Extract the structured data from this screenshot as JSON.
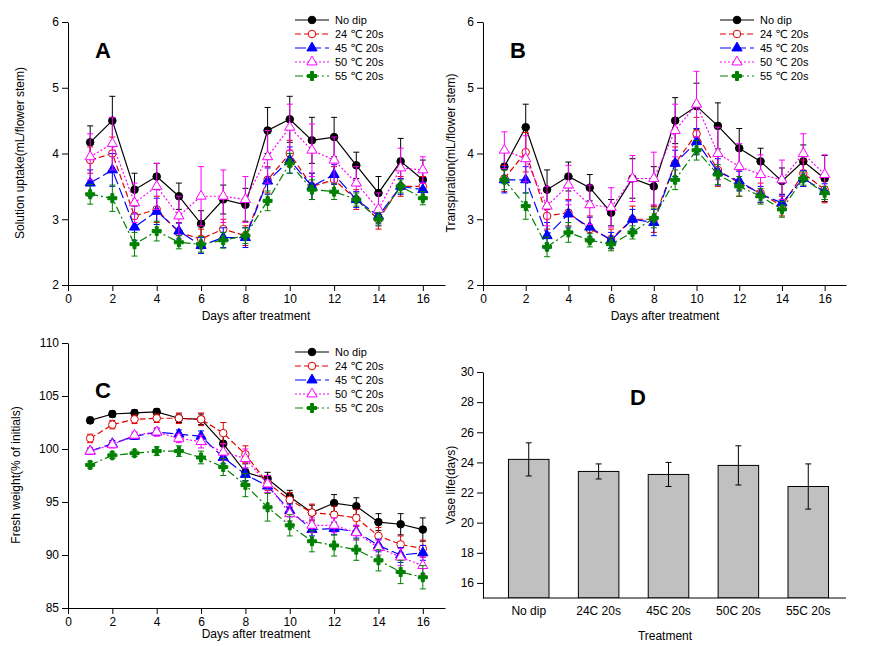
{
  "chart_data": [
    {
      "type": "line",
      "title": "A",
      "x_label": "Days after treatment",
      "y_label": "Solution uptake(mL/flower stem)",
      "x": [
        1,
        2,
        3,
        4,
        5,
        6,
        7,
        8,
        9,
        10,
        11,
        12,
        13,
        14,
        15,
        16
      ],
      "xlim": [
        0,
        17
      ],
      "xticks": [
        0,
        2,
        4,
        6,
        8,
        10,
        12,
        14,
        16
      ],
      "ylim": [
        2,
        6
      ],
      "yticks": [
        2,
        3,
        4,
        5,
        6
      ],
      "grid": false,
      "legend": "upper right",
      "series": [
        {
          "name": "No dip",
          "color": "#000000",
          "marker": "circle",
          "line_style": "solid",
          "values": [
            4.17,
            4.5,
            3.45,
            3.65,
            3.35,
            2.93,
            3.3,
            3.22,
            4.35,
            4.52,
            4.2,
            4.25,
            3.82,
            3.4,
            3.88,
            3.6
          ],
          "errors": [
            0.25,
            0.37,
            0.25,
            0.2,
            0.2,
            0.2,
            0.22,
            0.25,
            0.35,
            0.35,
            0.35,
            0.3,
            0.2,
            0.25,
            0.35,
            0.3
          ]
        },
        {
          "name": "24 ℃ 20s",
          "color": "#e00000",
          "marker": "circle-open",
          "line_style": "dashed",
          "values": [
            3.9,
            4.0,
            3.05,
            3.15,
            2.8,
            2.7,
            2.85,
            2.75,
            3.6,
            4.0,
            3.5,
            3.6,
            3.3,
            3.0,
            3.5,
            3.5
          ],
          "errors": [
            0.2,
            0.25,
            0.2,
            0.2,
            0.15,
            0.15,
            0.15,
            0.15,
            0.2,
            0.2,
            0.2,
            0.2,
            0.15,
            0.15,
            0.15,
            0.15
          ]
        },
        {
          "name": "45 ℃ 20s",
          "color": "#0000ff",
          "marker": "triangle",
          "line_style": "longdash",
          "values": [
            3.55,
            3.75,
            2.88,
            3.12,
            2.82,
            2.6,
            2.72,
            2.72,
            3.58,
            3.9,
            3.5,
            3.68,
            3.3,
            3.05,
            3.5,
            3.45
          ],
          "errors": [
            0.2,
            0.25,
            0.2,
            0.2,
            0.12,
            0.12,
            0.15,
            0.15,
            0.2,
            0.2,
            0.2,
            0.15,
            0.12,
            0.12,
            0.12,
            0.12
          ]
        },
        {
          "name": "50 ℃ 20s",
          "color": "#ff00ff",
          "marker": "triangle-open",
          "line_style": "dotted",
          "values": [
            3.95,
            4.15,
            3.25,
            3.5,
            3.05,
            3.35,
            3.35,
            3.3,
            3.95,
            4.4,
            4.05,
            3.9,
            3.55,
            3.15,
            3.78,
            3.75
          ],
          "errors": [
            0.35,
            0.4,
            0.3,
            0.35,
            0.3,
            0.45,
            0.4,
            0.35,
            0.4,
            0.35,
            0.4,
            0.35,
            0.25,
            0.25,
            0.3,
            0.2
          ]
        },
        {
          "name": "55 ℃ 20s",
          "color": "#008000",
          "marker": "cross",
          "line_style": "dashdot",
          "values": [
            3.38,
            3.32,
            2.62,
            2.82,
            2.65,
            2.62,
            2.68,
            2.75,
            3.28,
            3.85,
            3.45,
            3.42,
            3.3,
            3.0,
            3.5,
            3.32
          ],
          "errors": [
            0.15,
            0.2,
            0.18,
            0.15,
            0.1,
            0.12,
            0.12,
            0.12,
            0.15,
            0.15,
            0.15,
            0.12,
            0.1,
            0.1,
            0.1,
            0.1
          ]
        }
      ]
    },
    {
      "type": "line",
      "title": "B",
      "x_label": "Days after treatment",
      "y_label": "Transpiration(mL/flower stem)",
      "x": [
        1,
        2,
        3,
        4,
        5,
        6,
        7,
        8,
        9,
        10,
        11,
        12,
        13,
        14,
        15,
        16
      ],
      "xlim": [
        0,
        17
      ],
      "xticks": [
        0,
        2,
        4,
        6,
        8,
        10,
        12,
        14,
        16
      ],
      "ylim": [
        2,
        6
      ],
      "yticks": [
        2,
        3,
        4,
        5,
        6
      ],
      "grid": false,
      "legend": "upper right",
      "series": [
        {
          "name": "No dip",
          "color": "#000000",
          "marker": "circle",
          "line_style": "solid",
          "values": [
            3.8,
            4.4,
            3.45,
            3.65,
            3.48,
            3.1,
            3.62,
            3.5,
            4.5,
            4.72,
            4.42,
            4.08,
            3.88,
            3.58,
            3.88,
            3.62
          ],
          "errors": [
            0.25,
            0.35,
            0.3,
            0.22,
            0.2,
            0.2,
            0.3,
            0.3,
            0.35,
            0.35,
            0.35,
            0.3,
            0.2,
            0.2,
            0.25,
            0.35
          ]
        },
        {
          "name": "24 ℃ 20s",
          "color": "#e00000",
          "marker": "circle-open",
          "line_style": "dashed",
          "values": [
            3.62,
            4.02,
            3.05,
            3.1,
            2.85,
            2.7,
            3.0,
            3.0,
            3.85,
            4.3,
            3.75,
            3.55,
            3.4,
            3.2,
            3.7,
            3.45
          ],
          "errors": [
            0.2,
            0.3,
            0.2,
            0.2,
            0.2,
            0.15,
            0.2,
            0.2,
            0.25,
            0.25,
            0.25,
            0.2,
            0.15,
            0.15,
            0.2,
            0.2
          ]
        },
        {
          "name": "45 ℃ 20s",
          "color": "#0000ff",
          "marker": "triangle",
          "line_style": "longdash",
          "values": [
            3.6,
            3.6,
            2.75,
            3.08,
            2.88,
            2.68,
            3.0,
            2.95,
            3.85,
            4.18,
            3.72,
            3.58,
            3.38,
            3.25,
            3.62,
            3.42
          ],
          "errors": [
            0.2,
            0.2,
            0.2,
            0.2,
            0.15,
            0.12,
            0.15,
            0.2,
            0.2,
            0.2,
            0.2,
            0.15,
            0.12,
            0.12,
            0.12,
            0.12
          ]
        },
        {
          "name": "50 ℃ 20s",
          "color": "#ff00ff",
          "marker": "triangle-open",
          "line_style": "dotted",
          "values": [
            4.05,
            3.92,
            3.2,
            3.52,
            3.22,
            3.18,
            3.62,
            3.62,
            4.35,
            4.75,
            4.0,
            3.8,
            3.68,
            3.6,
            4.0,
            3.68
          ],
          "errors": [
            0.28,
            0.35,
            0.3,
            0.3,
            0.3,
            0.3,
            0.35,
            0.4,
            0.4,
            0.5,
            0.4,
            0.35,
            0.3,
            0.3,
            0.3,
            0.3
          ]
        },
        {
          "name": "55 ℃ 20s",
          "color": "#008000",
          "marker": "cross",
          "line_style": "dashdot",
          "values": [
            3.6,
            3.2,
            2.58,
            2.8,
            2.68,
            2.62,
            2.8,
            3.02,
            3.6,
            4.05,
            3.68,
            3.5,
            3.35,
            3.15,
            3.62,
            3.4
          ],
          "errors": [
            0.15,
            0.2,
            0.15,
            0.15,
            0.1,
            0.1,
            0.1,
            0.15,
            0.15,
            0.15,
            0.15,
            0.15,
            0.12,
            0.12,
            0.1,
            0.1
          ]
        }
      ]
    },
    {
      "type": "line",
      "title": "C",
      "x_label": "Days after treatment",
      "y_label": "Fresh weight(% of initials)",
      "x": [
        1,
        2,
        3,
        4,
        5,
        6,
        7,
        8,
        9,
        10,
        11,
        12,
        13,
        14,
        15,
        16
      ],
      "xlim": [
        0,
        17
      ],
      "xticks": [
        0,
        2,
        4,
        6,
        8,
        10,
        12,
        14,
        16
      ],
      "ylim": [
        85,
        110
      ],
      "yticks": [
        85,
        90,
        95,
        100,
        105,
        110
      ],
      "grid": false,
      "legend": "upper right",
      "series": [
        {
          "name": "No dip",
          "color": "#000000",
          "marker": "circle",
          "line_style": "solid",
          "values": [
            102.7,
            103.3,
            103.4,
            103.5,
            102.9,
            102.8,
            100.5,
            97.8,
            97.2,
            95.5,
            94.0,
            94.9,
            94.6,
            93.1,
            92.9,
            92.4
          ],
          "errors": [
            0.3,
            0.3,
            0.3,
            0.3,
            0.4,
            0.5,
            0.8,
            0.8,
            0.6,
            0.6,
            0.7,
            0.8,
            0.8,
            0.8,
            1.0,
            1.1
          ]
        },
        {
          "name": "24 ℃ 20s",
          "color": "#e00000",
          "marker": "circle-open",
          "line_style": "dashed",
          "values": [
            101.0,
            102.3,
            102.8,
            102.9,
            102.9,
            102.8,
            101.5,
            99.5,
            96.8,
            95.2,
            94.0,
            93.8,
            93.5,
            91.8,
            91.0,
            90.6
          ],
          "errors": [
            0.4,
            0.4,
            0.4,
            0.4,
            0.5,
            0.6,
            1.0,
            0.8,
            0.7,
            0.7,
            0.8,
            0.8,
            0.8,
            0.8,
            0.8,
            0.8
          ]
        },
        {
          "name": "45 ℃ 20s",
          "color": "#0000ff",
          "marker": "triangle",
          "line_style": "longdash",
          "values": [
            99.8,
            100.5,
            101.2,
            101.6,
            101.4,
            101.2,
            99.2,
            97.6,
            96.5,
            94.2,
            92.4,
            92.5,
            92.2,
            90.9,
            90.0,
            90.2
          ],
          "errors": [
            0.3,
            0.3,
            0.3,
            0.3,
            0.4,
            0.5,
            0.6,
            0.6,
            0.6,
            0.6,
            0.6,
            0.6,
            0.6,
            0.6,
            0.7,
            0.7
          ]
        },
        {
          "name": "50 ℃ 20s",
          "color": "#ff00ff",
          "marker": "triangle-open",
          "line_style": "dotted",
          "values": [
            99.8,
            100.4,
            101.3,
            101.6,
            101.0,
            100.7,
            99.7,
            99.1,
            96.7,
            93.9,
            92.8,
            92.8,
            92.1,
            90.7,
            89.8,
            89.0
          ],
          "errors": [
            0.3,
            0.3,
            0.3,
            0.4,
            0.4,
            0.6,
            0.8,
            0.9,
            0.8,
            0.7,
            0.7,
            0.7,
            0.7,
            0.7,
            0.8,
            0.8
          ]
        },
        {
          "name": "55 ℃ 20s",
          "color": "#008000",
          "marker": "cross",
          "line_style": "dashdot",
          "values": [
            98.5,
            99.4,
            99.6,
            99.8,
            99.8,
            99.2,
            98.3,
            96.6,
            94.5,
            92.8,
            91.3,
            90.9,
            90.5,
            89.5,
            88.4,
            87.9
          ],
          "errors": [
            0.3,
            0.3,
            0.3,
            0.4,
            0.5,
            0.6,
            0.8,
            1.1,
            1.3,
            1.0,
            1.0,
            1.0,
            1.0,
            1.0,
            1.1,
            1.1
          ]
        }
      ]
    },
    {
      "type": "bar",
      "title": "D",
      "x_label": "Treatment",
      "y_label": "Vase life(days)",
      "categories": [
        "No dip",
        "24C 20s",
        "45C 20s",
        "50C 20s",
        "55C 20s"
      ],
      "values": [
        24.2,
        23.4,
        23.2,
        23.8,
        22.4
      ],
      "errors": [
        1.1,
        0.5,
        0.8,
        1.3,
        1.5
      ],
      "color": "#c0c0c0",
      "ylim": [
        15,
        30
      ],
      "yticks": [
        16,
        18,
        20,
        22,
        24,
        26,
        28,
        30
      ],
      "grid": false
    }
  ]
}
